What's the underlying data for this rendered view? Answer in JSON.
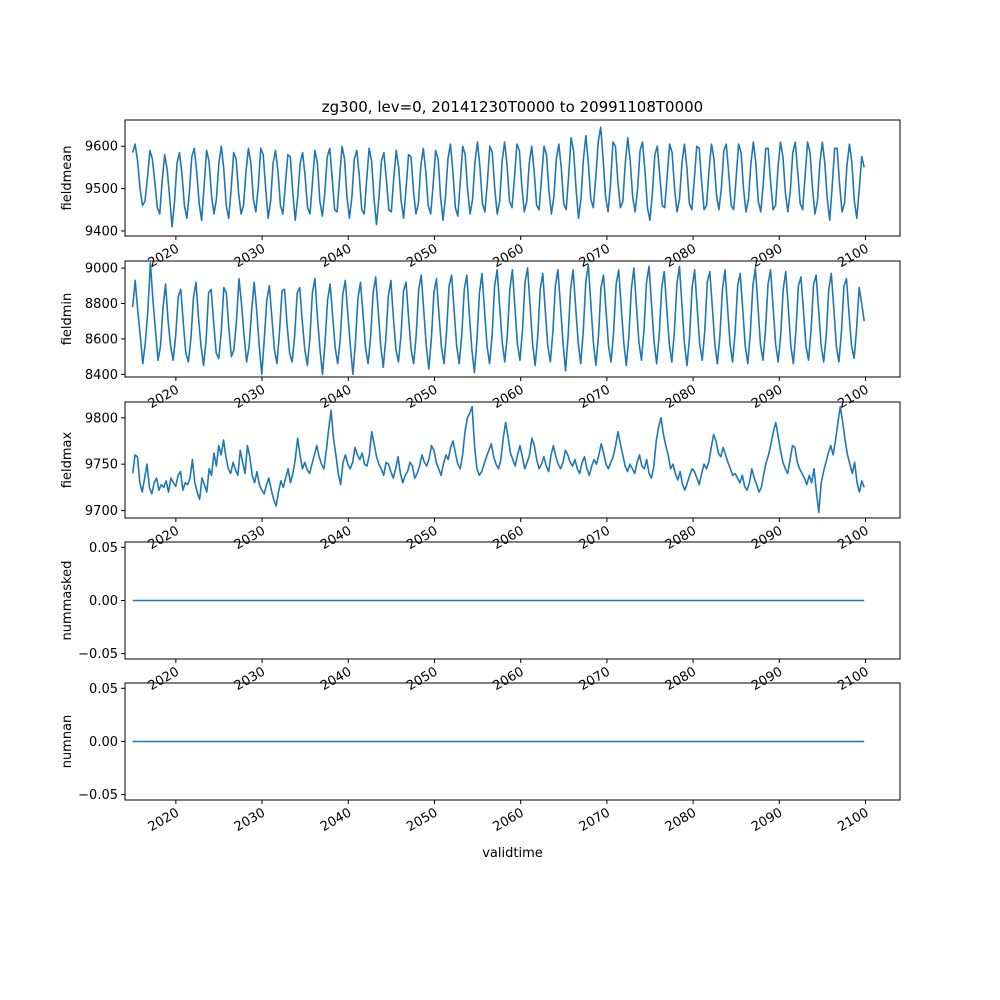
{
  "chart_data": [
    {
      "type": "line",
      "title": "zg300, lev=0, 20141230T0000 to 20991108T0000",
      "ylabel": "fieldmean",
      "xlabel": "",
      "xlim": [
        2014.1,
        2104.0
      ],
      "ylim": [
        9388,
        9662
      ],
      "yticks": [
        9400,
        9500,
        9600
      ],
      "xticks": [
        2020,
        2030,
        2040,
        2050,
        2060,
        2070,
        2080,
        2090,
        2100
      ],
      "grid": false,
      "color": "#1f77b4",
      "x_start": 2014.99,
      "x_end": 2099.85,
      "series": [
        {
          "values": [
            9585,
            9605,
            9565,
            9500,
            9460,
            9470,
            9525,
            9590,
            9570,
            9515,
            9455,
            9440,
            9520,
            9580,
            9545,
            9480,
            9410,
            9470,
            9560,
            9585,
            9535,
            9460,
            9430,
            9490,
            9575,
            9595,
            9540,
            9465,
            9425,
            9505,
            9590,
            9565,
            9485,
            9440,
            9475,
            9560,
            9600,
            9545,
            9460,
            9430,
            9500,
            9585,
            9570,
            9490,
            9440,
            9460,
            9540,
            9595,
            9560,
            9475,
            9445,
            9505,
            9595,
            9580,
            9500,
            9430,
            9470,
            9560,
            9590,
            9540,
            9460,
            9440,
            9510,
            9580,
            9575,
            9490,
            9425,
            9480,
            9560,
            9585,
            9530,
            9455,
            9440,
            9515,
            9590,
            9560,
            9470,
            9435,
            9490,
            9575,
            9595,
            9525,
            9450,
            9445,
            9525,
            9600,
            9570,
            9480,
            9430,
            9480,
            9570,
            9590,
            9530,
            9450,
            9440,
            9520,
            9595,
            9565,
            9475,
            9415,
            9480,
            9565,
            9585,
            9520,
            9450,
            9445,
            9525,
            9590,
            9550,
            9470,
            9430,
            9500,
            9580,
            9575,
            9495,
            9440,
            9465,
            9555,
            9595,
            9540,
            9460,
            9440,
            9510,
            9590,
            9570,
            9480,
            9425,
            9480,
            9570,
            9605,
            9540,
            9455,
            9435,
            9515,
            9600,
            9580,
            9495,
            9440,
            9475,
            9565,
            9610,
            9550,
            9465,
            9445,
            9515,
            9600,
            9585,
            9500,
            9440,
            9470,
            9565,
            9610,
            9555,
            9470,
            9455,
            9525,
            9605,
            9590,
            9505,
            9445,
            9470,
            9560,
            9600,
            9540,
            9460,
            9450,
            9525,
            9600,
            9580,
            9495,
            9440,
            9480,
            9570,
            9605,
            9550,
            9465,
            9450,
            9530,
            9620,
            9590,
            9500,
            9430,
            9475,
            9570,
            9625,
            9560,
            9475,
            9455,
            9525,
            9610,
            9645,
            9570,
            9480,
            9445,
            9510,
            9610,
            9600,
            9515,
            9455,
            9470,
            9560,
            9620,
            9565,
            9480,
            9445,
            9500,
            9590,
            9610,
            9540,
            9455,
            9425,
            9490,
            9580,
            9600,
            9530,
            9460,
            9455,
            9530,
            9605,
            9585,
            9500,
            9445,
            9475,
            9560,
            9605,
            9550,
            9465,
            9450,
            9520,
            9600,
            9595,
            9515,
            9450,
            9460,
            9545,
            9605,
            9570,
            9485,
            9450,
            9500,
            9590,
            9605,
            9535,
            9460,
            9450,
            9525,
            9605,
            9585,
            9500,
            9445,
            9475,
            9560,
            9610,
            9560,
            9470,
            9445,
            9510,
            9595,
            9595,
            9515,
            9450,
            9460,
            9550,
            9610,
            9575,
            9490,
            9445,
            9495,
            9585,
            9610,
            9540,
            9465,
            9450,
            9530,
            9610,
            9585,
            9500,
            9440,
            9470,
            9560,
            9610,
            9560,
            9475,
            9425,
            9505,
            9595,
            9595,
            9510,
            9445,
            9465,
            9555,
            9605,
            9560,
            9470,
            9430,
            9500,
            9575,
            9550
          ]
        }
      ]
    },
    {
      "type": "line",
      "ylabel": "fieldmin",
      "xlabel": "",
      "xlim": [
        2014.1,
        2104.0
      ],
      "ylim": [
        8385,
        9040
      ],
      "yticks": [
        8400,
        8600,
        8800,
        9000
      ],
      "xticks": [
        2020,
        2030,
        2040,
        2050,
        2060,
        2070,
        2080,
        2090,
        2100
      ],
      "grid": false,
      "color": "#1f77b4",
      "x_start": 2014.99,
      "x_end": 2099.85,
      "series": [
        {
          "values": [
            8780,
            8930,
            8760,
            8620,
            8460,
            8580,
            8760,
            9030,
            8820,
            8650,
            8480,
            8560,
            8780,
            8910,
            8700,
            8560,
            8480,
            8620,
            8840,
            8880,
            8690,
            8520,
            8470,
            8600,
            8830,
            8920,
            8720,
            8560,
            8450,
            8590,
            8860,
            8880,
            8690,
            8520,
            8490,
            8640,
            8890,
            8860,
            8660,
            8500,
            8540,
            8700,
            8940,
            8800,
            8620,
            8470,
            8560,
            8760,
            8920,
            8760,
            8560,
            8400,
            8600,
            8820,
            8900,
            8720,
            8540,
            8460,
            8640,
            8870,
            8880,
            8680,
            8520,
            8470,
            8620,
            8860,
            8890,
            8700,
            8540,
            8450,
            8600,
            8860,
            8940,
            8720,
            8540,
            8400,
            8580,
            8820,
            8910,
            8730,
            8550,
            8460,
            8600,
            8850,
            8930,
            8740,
            8560,
            8400,
            8580,
            8830,
            8920,
            8740,
            8550,
            8460,
            8610,
            8860,
            8950,
            8760,
            8560,
            8440,
            8600,
            8840,
            8930,
            8720,
            8540,
            8470,
            8620,
            8870,
            8920,
            8720,
            8540,
            8460,
            8620,
            8880,
            8960,
            8760,
            8560,
            8430,
            8600,
            8860,
            8940,
            8740,
            8550,
            8460,
            8640,
            8900,
            8960,
            8760,
            8560,
            8460,
            8620,
            8880,
            8960,
            8740,
            8540,
            8410,
            8590,
            8860,
            8970,
            8760,
            8560,
            8460,
            8620,
            8900,
            8990,
            8780,
            8580,
            8470,
            8620,
            8880,
            8990,
            8780,
            8570,
            8480,
            8650,
            8920,
            9000,
            8790,
            8570,
            8450,
            8610,
            8880,
            8970,
            8760,
            8560,
            8470,
            8640,
            8900,
            8990,
            8790,
            8580,
            8420,
            8610,
            8880,
            8990,
            8780,
            8580,
            8460,
            8640,
            8920,
            9020,
            8800,
            8580,
            8450,
            8610,
            8890,
            8960,
            8760,
            8560,
            8470,
            8640,
            8910,
            8990,
            8780,
            8580,
            8450,
            8610,
            8880,
            9000,
            8790,
            8580,
            8480,
            8650,
            8920,
            9010,
            8790,
            8580,
            8460,
            8620,
            8890,
            8980,
            8770,
            8570,
            8470,
            8640,
            8910,
            9010,
            8790,
            8570,
            8450,
            8610,
            8890,
            8990,
            8780,
            8570,
            8480,
            8640,
            8920,
            8980,
            8780,
            8570,
            8460,
            8620,
            8880,
            8990,
            8780,
            8570,
            8470,
            8640,
            8900,
            8970,
            8770,
            8560,
            8460,
            8630,
            8900,
            9000,
            8790,
            8570,
            8480,
            8650,
            8910,
            8990,
            8780,
            8570,
            8470,
            8620,
            8880,
            8980,
            8780,
            8560,
            8460,
            8640,
            8900,
            8950,
            8760,
            8560,
            8480,
            8650,
            8910,
            8960,
            8760,
            8560,
            8470,
            8620,
            8880,
            8970,
            8770,
            8560,
            8470,
            8640,
            8900,
            8940,
            8740,
            8560,
            8490,
            8660,
            8890,
            8800,
            8700
          ]
        }
      ]
    },
    {
      "type": "line",
      "ylabel": "fieldmax",
      "xlabel": "",
      "xlim": [
        2014.1,
        2104.0
      ],
      "ylim": [
        9692,
        9817
      ],
      "yticks": [
        9700,
        9750,
        9800
      ],
      "xticks": [
        2020,
        2030,
        2040,
        2050,
        2060,
        2070,
        2080,
        2090,
        2100
      ],
      "grid": false,
      "color": "#1f77b4",
      "x_start": 2014.99,
      "x_end": 2099.85,
      "series": [
        {
          "values": [
            9740,
            9760,
            9758,
            9730,
            9720,
            9735,
            9750,
            9725,
            9718,
            9730,
            9735,
            9722,
            9728,
            9725,
            9732,
            9720,
            9735,
            9730,
            9726,
            9738,
            9742,
            9722,
            9730,
            9728,
            9735,
            9755,
            9730,
            9720,
            9712,
            9735,
            9728,
            9720,
            9745,
            9738,
            9762,
            9748,
            9770,
            9760,
            9776,
            9758,
            9745,
            9740,
            9752,
            9744,
            9738,
            9765,
            9752,
            9740,
            9770,
            9758,
            9738,
            9730,
            9742,
            9728,
            9722,
            9718,
            9728,
            9735,
            9722,
            9712,
            9705,
            9720,
            9732,
            9725,
            9735,
            9745,
            9730,
            9740,
            9755,
            9778,
            9760,
            9745,
            9752,
            9744,
            9740,
            9750,
            9760,
            9770,
            9758,
            9750,
            9745,
            9765,
            9788,
            9808,
            9778,
            9760,
            9740,
            9728,
            9752,
            9760,
            9750,
            9745,
            9752,
            9768,
            9760,
            9755,
            9762,
            9750,
            9748,
            9760,
            9785,
            9772,
            9758,
            9750,
            9745,
            9738,
            9752,
            9750,
            9742,
            9735,
            9745,
            9758,
            9740,
            9730,
            9738,
            9742,
            9752,
            9748,
            9735,
            9740,
            9748,
            9760,
            9752,
            9748,
            9756,
            9770,
            9765,
            9752,
            9745,
            9738,
            9750,
            9760,
            9755,
            9768,
            9775,
            9762,
            9750,
            9745,
            9760,
            9785,
            9800,
            9805,
            9812,
            9770,
            9745,
            9738,
            9742,
            9750,
            9758,
            9765,
            9772,
            9758,
            9750,
            9745,
            9755,
            9778,
            9795,
            9780,
            9762,
            9755,
            9748,
            9760,
            9770,
            9758,
            9745,
            9752,
            9760,
            9778,
            9770,
            9755,
            9745,
            9750,
            9758,
            9748,
            9742,
            9760,
            9770,
            9758,
            9750,
            9745,
            9752,
            9765,
            9760,
            9752,
            9748,
            9755,
            9745,
            9740,
            9752,
            9758,
            9745,
            9738,
            9748,
            9755,
            9750,
            9760,
            9772,
            9762,
            9750,
            9745,
            9752,
            9758,
            9770,
            9785,
            9772,
            9760,
            9748,
            9742,
            9750,
            9745,
            9740,
            9752,
            9760,
            9748,
            9745,
            9755,
            9740,
            9735,
            9748,
            9775,
            9790,
            9800,
            9782,
            9770,
            9760,
            9745,
            9750,
            9740,
            9733,
            9742,
            9728,
            9722,
            9730,
            9738,
            9745,
            9742,
            9735,
            9728,
            9740,
            9750,
            9745,
            9752,
            9768,
            9782,
            9775,
            9762,
            9758,
            9768,
            9760,
            9752,
            9745,
            9738,
            9740,
            9735,
            9730,
            9738,
            9726,
            9722,
            9730,
            9745,
            9735,
            9728,
            9720,
            9725,
            9740,
            9752,
            9760,
            9772,
            9785,
            9795,
            9780,
            9765,
            9752,
            9745,
            9740,
            9755,
            9770,
            9768,
            9752,
            9745,
            9740,
            9735,
            9728,
            9738,
            9730,
            9745,
            9720,
            9698,
            9730,
            9742,
            9752,
            9762,
            9770,
            9760,
            9776,
            9795,
            9812,
            9795,
            9776,
            9760,
            9750,
            9740,
            9752,
            9730,
            9720,
            9732,
            9725
          ]
        }
      ]
    },
    {
      "type": "line",
      "ylabel": "nummasked",
      "xlabel": "",
      "xlim": [
        2014.1,
        2104.0
      ],
      "ylim": [
        -0.055,
        0.055
      ],
      "yticks": [
        -0.05,
        0.0,
        0.05
      ],
      "ytick_labels": [
        "−0.05",
        "0.00",
        "0.05"
      ],
      "xticks": [
        2020,
        2030,
        2040,
        2050,
        2060,
        2070,
        2080,
        2090,
        2100
      ],
      "grid": false,
      "color": "#1f77b4",
      "x_start": 2014.99,
      "x_end": 2099.85,
      "series": [
        {
          "values": [
            0,
            0
          ]
        }
      ]
    },
    {
      "type": "line",
      "ylabel": "numnan",
      "xlabel": "validtime",
      "xlim": [
        2014.1,
        2104.0
      ],
      "ylim": [
        -0.055,
        0.055
      ],
      "yticks": [
        -0.05,
        0.0,
        0.05
      ],
      "ytick_labels": [
        "−0.05",
        "0.00",
        "0.05"
      ],
      "xticks": [
        2020,
        2030,
        2040,
        2050,
        2060,
        2070,
        2080,
        2090,
        2100
      ],
      "grid": false,
      "color": "#1f77b4",
      "x_start": 2014.99,
      "x_end": 2099.85,
      "series": [
        {
          "values": [
            0,
            0
          ]
        }
      ]
    }
  ]
}
